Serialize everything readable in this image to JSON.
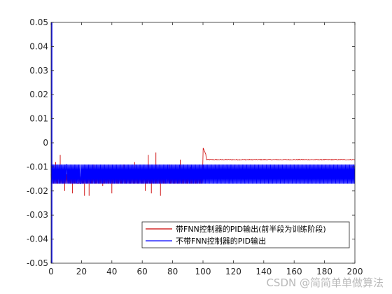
{
  "chart_data": {
    "type": "line",
    "title": "",
    "xlabel": "",
    "ylabel": "",
    "xlim": [
      0,
      200
    ],
    "ylim": [
      -0.05,
      0.05
    ],
    "x_ticks": [
      0,
      20,
      40,
      60,
      80,
      100,
      120,
      140,
      160,
      180,
      200
    ],
    "y_ticks": [
      0.05,
      0.04,
      0.03,
      0.02,
      0.01,
      0,
      -0.01,
      -0.02,
      -0.03,
      -0.04,
      -0.05
    ],
    "x_tick_labels": [
      "0",
      "20",
      "40",
      "60",
      "80",
      "100",
      "120",
      "140",
      "160",
      "180",
      "200"
    ],
    "y_tick_labels": [
      "0.05",
      "0.04",
      "0.03",
      "0.02",
      "0.01",
      "0",
      "-0.01",
      "-0.02",
      "-0.03",
      "-0.04",
      "-0.05"
    ],
    "grid": false,
    "legend_position": "bottom-right",
    "series": [
      {
        "name": "带FNN控制器的PID输出(前半段为训练阶段)",
        "color": "#cc0000",
        "description_points": {
          "band_first_half": [
            -0.013,
            -0.017
          ],
          "spikes_first_half": [
            [
              3,
              -0.008
            ],
            [
              6,
              -0.005
            ],
            [
              9,
              -0.02
            ],
            [
              14,
              -0.021
            ],
            [
              22,
              -0.022
            ],
            [
              25,
              -0.022
            ],
            [
              28,
              -0.009
            ],
            [
              34,
              -0.018
            ],
            [
              40,
              -0.021
            ],
            [
              48,
              -0.009
            ],
            [
              55,
              -0.008
            ],
            [
              62,
              -0.02
            ],
            [
              64,
              -0.005
            ],
            [
              66,
              -0.021
            ],
            [
              69,
              -0.004
            ],
            [
              72,
              -0.022
            ],
            [
              78,
              -0.009
            ],
            [
              85,
              -0.007
            ],
            [
              92,
              -0.01
            ]
          ],
          "step_at": [
            100,
            -0.002
          ],
          "steady_value_second_half": -0.007
        }
      },
      {
        "name": "不带FNN控制器的PID输出",
        "color": "#0000ff",
        "description_points": {
          "initial_spike": [
            [
              0,
              0.05
            ],
            [
              0,
              -0.05
            ]
          ],
          "band": [
            -0.009,
            -0.017
          ]
        }
      }
    ]
  },
  "watermark": "CSDN @简简单单做算法"
}
